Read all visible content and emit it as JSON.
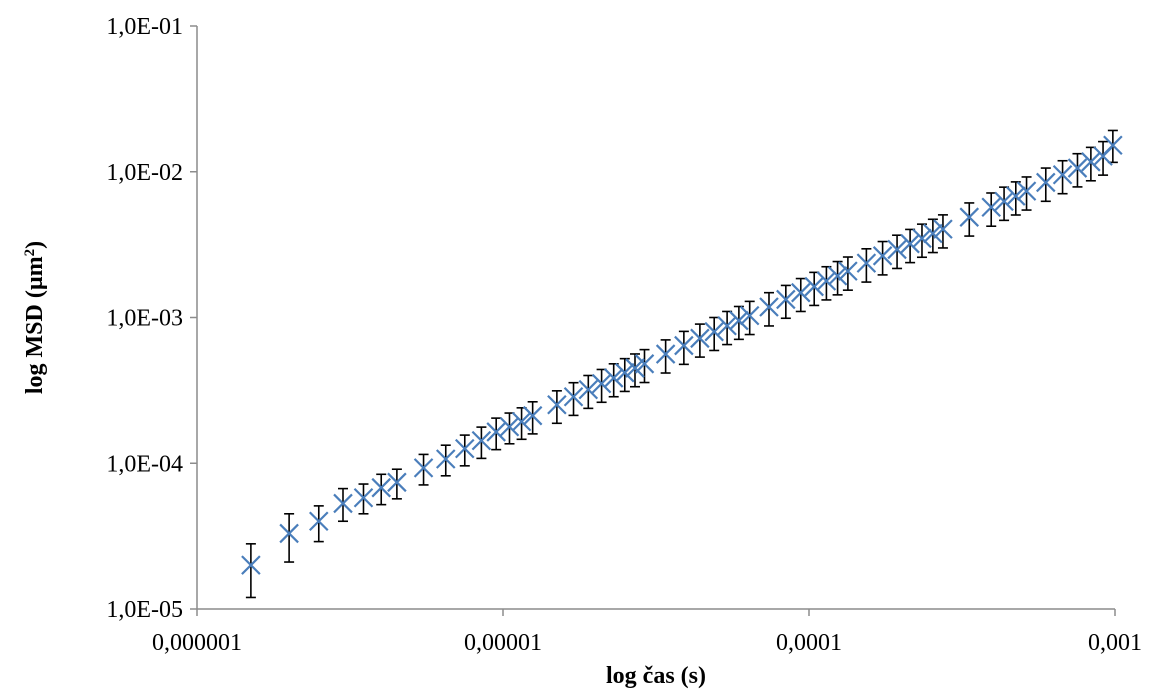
{
  "chart_data": {
    "type": "scatter",
    "title": "",
    "xlabel": "log čas (s)",
    "ylabel_main": "log MSD (µm",
    "ylabel_sup": "2",
    "ylabel_tail": ")",
    "x_scale": "log",
    "y_scale": "log",
    "xlim": [
      1e-06,
      0.001
    ],
    "ylim": [
      1e-05,
      0.1
    ],
    "x_ticks": [
      1e-06,
      1e-05,
      0.0001,
      0.001
    ],
    "x_tick_labels": [
      "0,000001",
      "0,00001",
      "0,0001",
      "0,001"
    ],
    "y_ticks": [
      1e-05,
      0.0001,
      0.001,
      0.01,
      0.1
    ],
    "y_tick_labels": [
      "1,0E-05",
      "1,0E-04",
      "1,0E-03",
      "1,0E-02",
      "1,0E-01"
    ],
    "grid": false,
    "legend": "none",
    "marker": "x",
    "marker_color": "#4a7ebb",
    "error_bar_color": "#000000",
    "series": [
      {
        "x": [
          1.5e-06,
          2e-06,
          2.5e-06,
          3e-06,
          3.5e-06,
          4e-06,
          4.5e-06,
          5.5e-06,
          6.5e-06,
          7.5e-06,
          8.5e-06,
          9.5e-06,
          1.05e-05,
          1.15e-05,
          1.25e-05,
          1.5e-05,
          1.7e-05,
          1.9e-05,
          2.1e-05,
          2.3e-05,
          2.5e-05,
          2.7e-05,
          2.9e-05,
          3.4e-05,
          3.9e-05,
          4.4e-05,
          4.9e-05,
          5.4e-05,
          5.9e-05,
          6.4e-05,
          7.4e-05,
          8.4e-05,
          9.4e-05,
          0.000104,
          0.000114,
          0.000124,
          0.000134,
          0.000154,
          0.000174,
          0.000194,
          0.000214,
          0.000234,
          0.000254,
          0.000274,
          0.000334,
          0.000394,
          0.000434,
          0.000474,
          0.000514,
          0.000594,
          0.000674,
          0.000754,
          0.000834,
          0.000914,
          0.000984
        ],
        "y": [
          2e-05,
          3.3e-05,
          4e-05,
          5.3e-05,
          5.8e-05,
          6.8e-05,
          7.4e-05,
          9.3e-05,
          0.000107,
          0.000126,
          0.000143,
          0.000164,
          0.000178,
          0.000193,
          0.000212,
          0.000252,
          0.000286,
          0.00032,
          0.000352,
          0.000385,
          0.000418,
          0.00045,
          0.000481,
          0.000561,
          0.000642,
          0.00072,
          0.000799,
          0.000878,
          0.000953,
          0.00103,
          0.00118,
          0.00133,
          0.00148,
          0.00163,
          0.00178,
          0.00193,
          0.00208,
          0.00236,
          0.00265,
          0.00293,
          0.00321,
          0.00349,
          0.00377,
          0.00404,
          0.00488,
          0.00571,
          0.00626,
          0.00681,
          0.00736,
          0.00845,
          0.00954,
          0.0106,
          0.0117,
          0.0128,
          0.0152
        ],
        "y_lower": [
          1.2e-05,
          2.1e-05,
          2.9e-05,
          4e-05,
          4.5e-05,
          5.2e-05,
          5.7e-05,
          7.1e-05,
          8.2e-05,
          9.6e-05,
          0.000108,
          0.000124,
          0.000136,
          0.000146,
          0.000159,
          0.000188,
          0.000213,
          0.000238,
          0.000262,
          0.000286,
          0.000311,
          0.000335,
          0.000358,
          0.000416,
          0.000477,
          0.000535,
          0.000594,
          0.000652,
          0.000708,
          0.000764,
          0.000875,
          0.000988,
          0.0011,
          0.00121,
          0.00132,
          0.00143,
          0.00154,
          0.00175,
          0.00196,
          0.00217,
          0.00238,
          0.00259,
          0.00279,
          0.003,
          0.00362,
          0.00423,
          0.00464,
          0.00505,
          0.00546,
          0.00627,
          0.00707,
          0.00787,
          0.00867,
          0.00948,
          0.0116
        ],
        "y_upper": [
          2.8e-05,
          4.5e-05,
          5.1e-05,
          6.7e-05,
          7.2e-05,
          8.4e-05,
          9.1e-05,
          0.000115,
          0.000133,
          0.000156,
          0.000177,
          0.000204,
          0.000221,
          0.00024,
          0.000264,
          0.000314,
          0.000357,
          0.0004,
          0.00044,
          0.000481,
          0.000522,
          0.000562,
          0.000602,
          0.000702,
          0.000803,
          0.000901,
          0.001,
          0.0011,
          0.00119,
          0.00129,
          0.00148,
          0.00166,
          0.00185,
          0.00204,
          0.00223,
          0.00242,
          0.0026,
          0.00296,
          0.00332,
          0.00367,
          0.00402,
          0.00437,
          0.00472,
          0.00506,
          0.00611,
          0.00715,
          0.00784,
          0.00852,
          0.00921,
          0.0106,
          0.0119,
          0.0133,
          0.0147,
          0.0161,
          0.0192
        ]
      }
    ]
  }
}
